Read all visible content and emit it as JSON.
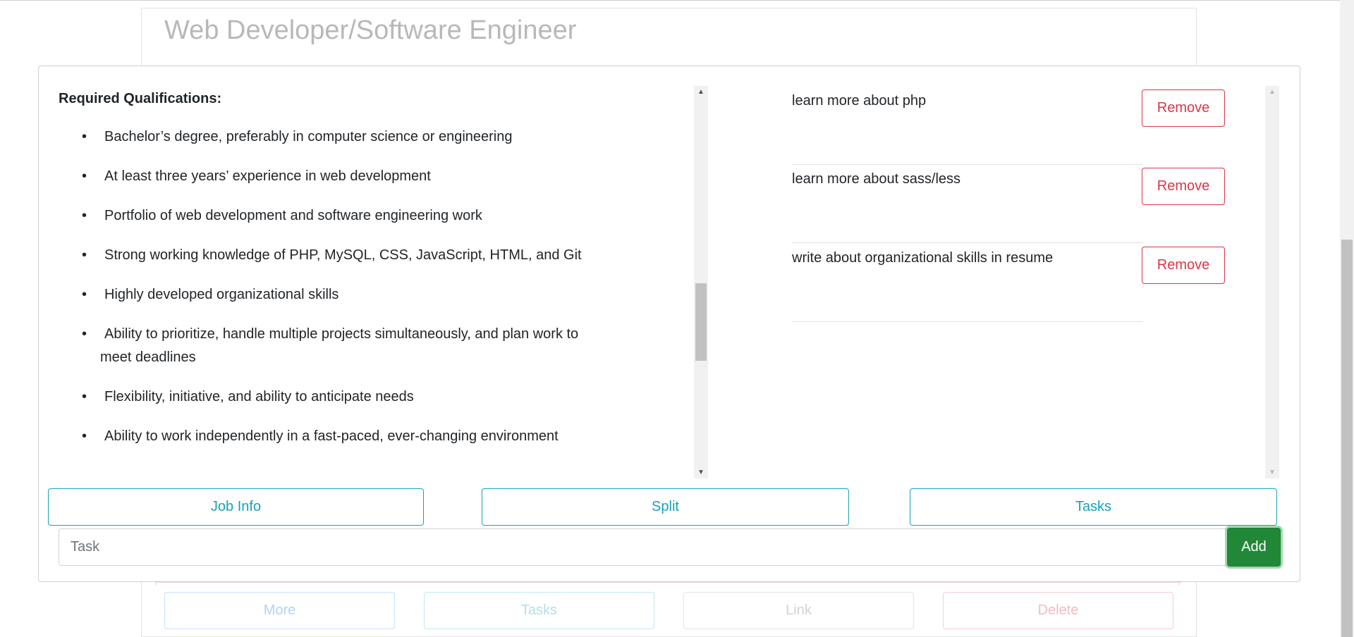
{
  "background": {
    "title": "Web Developer/Software Engineer",
    "buttons": {
      "more": "More",
      "tasks": "Tasks",
      "link": "Link",
      "delete": "Delete"
    }
  },
  "modal": {
    "qualifications": {
      "heading": "Required Qualifications:",
      "items": [
        "Bachelor’s degree, preferably in computer science or engineering",
        "At least three years’ experience in web development",
        "Portfolio of web development and software engineering work",
        "Strong working knowledge of PHP, MySQL, CSS, JavaScript, HTML, and Git",
        "Highly developed organizational skills",
        "Ability to prioritize, handle multiple projects simultaneously, and plan work to",
        "meet deadlines",
        "Flexibility, initiative, and ability to anticipate needs",
        "Ability to work independently in a fast-paced, ever-changing environment"
      ],
      "bullet": "•"
    },
    "tasks": [
      {
        "text": "learn more about php",
        "remove_label": "Remove"
      },
      {
        "text": "learn more about sass/less",
        "remove_label": "Remove"
      },
      {
        "text": "write about organizational skills in resume",
        "remove_label": "Remove"
      }
    ],
    "tabs": {
      "job_info": "Job Info",
      "split": "Split",
      "tasks": "Tasks"
    },
    "task_input": {
      "placeholder": "Task",
      "value": ""
    },
    "add_label": "Add"
  },
  "scroll_icons": {
    "up": "▲",
    "down": "▼",
    "left": "‹",
    "right": "›"
  },
  "colors": {
    "info": "#17a2b8",
    "danger": "#dc3545",
    "success": "#218838"
  }
}
